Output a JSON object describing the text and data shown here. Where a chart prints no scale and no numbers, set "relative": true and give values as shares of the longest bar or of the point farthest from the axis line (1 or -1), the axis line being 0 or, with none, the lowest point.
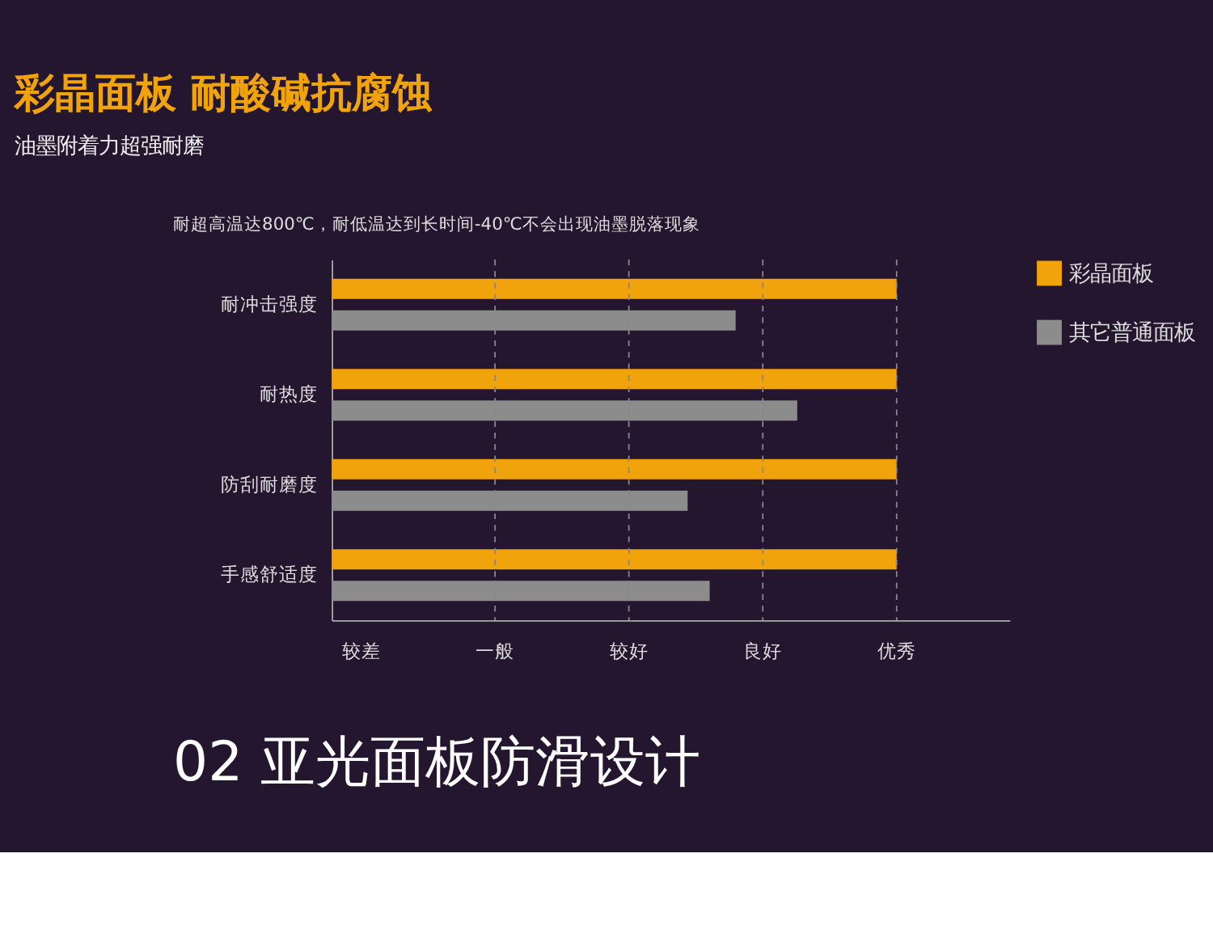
{
  "chart_data": {
    "type": "bar",
    "orientation": "horizontal",
    "relative": true,
    "title": "彩晶面板  耐酸碱抗腐蚀",
    "subtitle": "油墨附着力超强耐磨",
    "annotations": [
      "耐超高温达800℃，耐低温达到长时间-40℃不会出现油墨脱落现象",
      "较差",
      "一般",
      "较好",
      "良好",
      "优秀",
      "02  亚光面板防滑设计"
    ],
    "categories": [
      "耐冲击强度",
      "耐热度",
      "防刮耐磨度",
      "手感舒适度"
    ],
    "series": [
      {
        "name": "彩晶面板",
        "color": "#f0a30a",
        "values": [
          1,
          1,
          1,
          1
        ]
      },
      {
        "name": "其它普通面板",
        "color": "#8c8c8c",
        "values": [
          0.715,
          0.824,
          0.63,
          0.669
        ]
      }
    ],
    "legend": "top right"
  }
}
